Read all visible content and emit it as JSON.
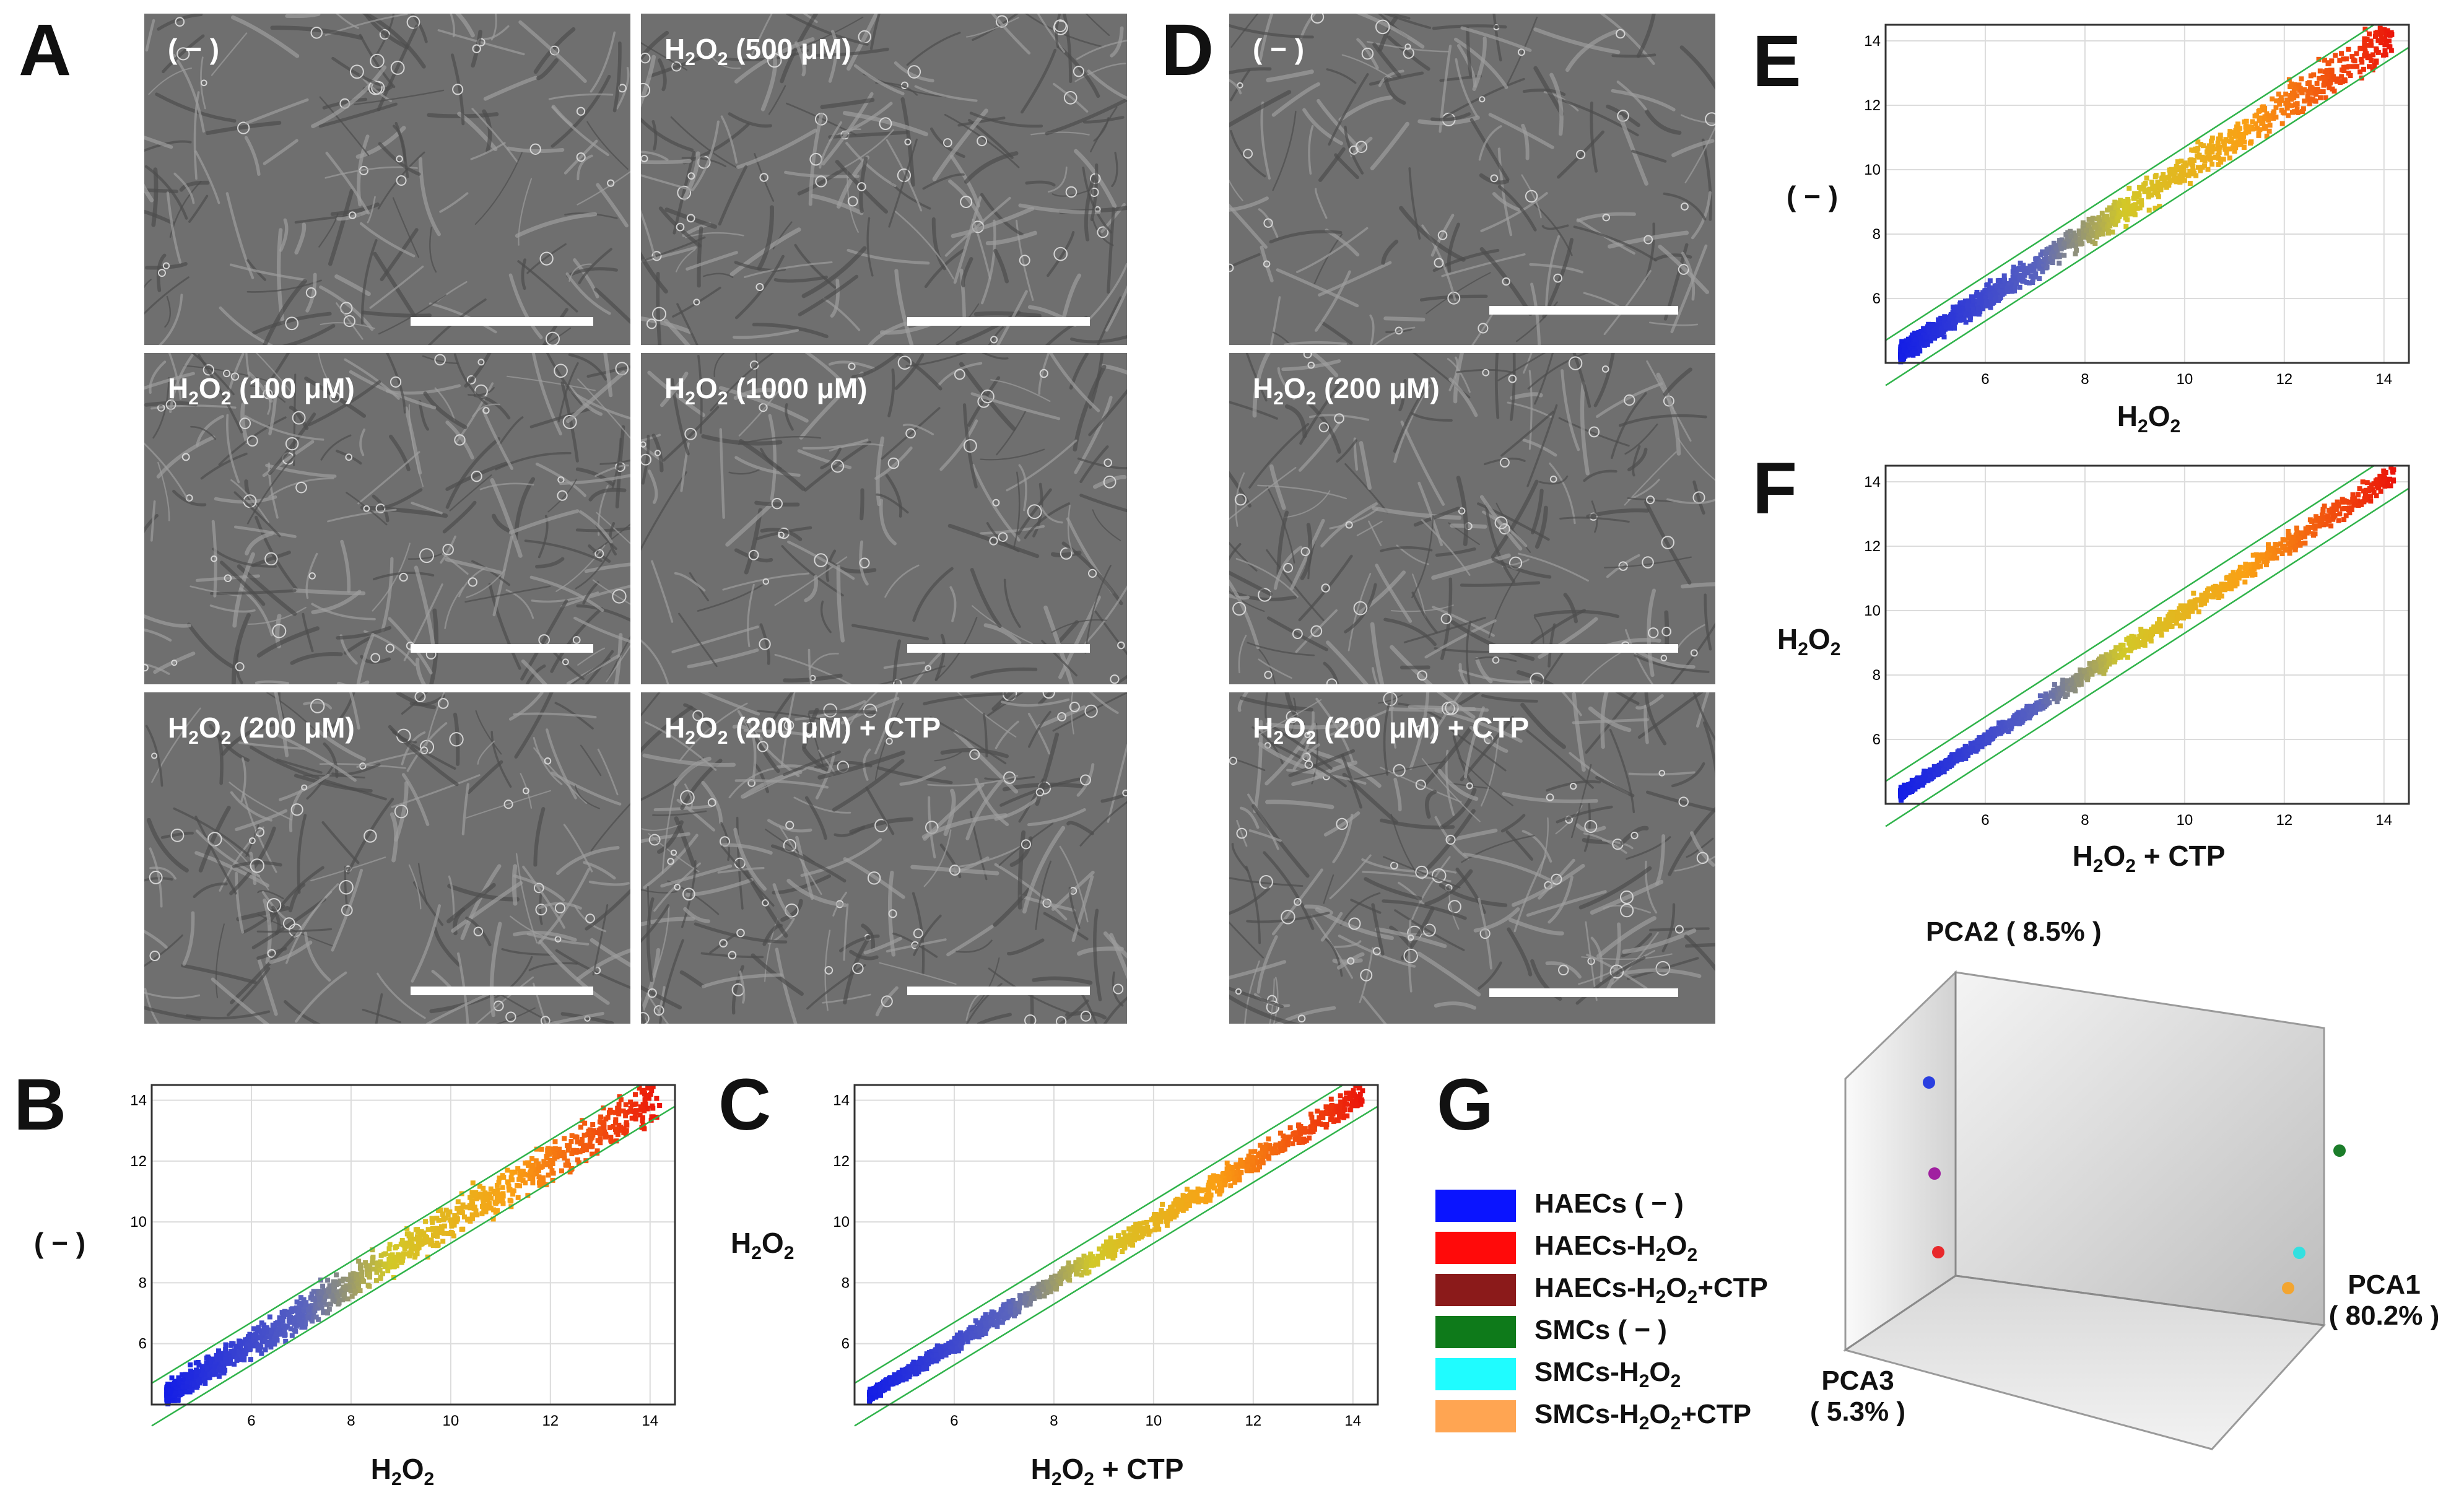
{
  "panel_letters": {
    "A": "A",
    "B": "B",
    "C": "C",
    "D": "D",
    "E": "E",
    "F": "F",
    "G": "G"
  },
  "panel_A": {
    "images": [
      {
        "label": "( − )",
        "h2o2": false
      },
      {
        "prefix": "H",
        "sub": "2",
        "mid": "O",
        "sub2": "2",
        "suffix": " (500 μM)"
      },
      {
        "prefix": "H",
        "sub": "2",
        "mid": "O",
        "sub2": "2",
        "suffix": " (100 μM)"
      },
      {
        "prefix": "H",
        "sub": "2",
        "mid": "O",
        "sub2": "2",
        "suffix": " (1000 μM)"
      },
      {
        "prefix": "H",
        "sub": "2",
        "mid": "O",
        "sub2": "2",
        "suffix": " (200 μM)"
      },
      {
        "prefix": "H",
        "sub": "2",
        "mid": "O",
        "sub2": "2",
        "suffix": " (200 μM) + CTP"
      }
    ]
  },
  "panel_D": {
    "images": [
      {
        "label": "( − )"
      },
      {
        "prefix": "H",
        "sub": "2",
        "mid": "O",
        "sub2": "2",
        "suffix": " (200 μM)"
      },
      {
        "prefix": "H",
        "sub": "2",
        "mid": "O",
        "sub2": "2",
        "suffix": " (200 μM) + CTP"
      }
    ]
  },
  "axis_text": {
    "neg": "( − )",
    "h": "H",
    "two": "2",
    "o": "O",
    "ctp_suffix": " + CTP"
  },
  "chart_data": [
    {
      "panel": "B",
      "type": "scatter",
      "xlabel": "H2O2",
      "ylabel": "( − )",
      "xticks": [
        6,
        8,
        10,
        12,
        14
      ],
      "yticks": [
        6,
        8,
        10,
        12,
        14
      ],
      "xlim": [
        4,
        14.5
      ],
      "ylim": [
        4,
        14.5
      ],
      "spread": 0.55,
      "identity_bands": {
        "offset": 0.7
      },
      "grid": true
    },
    {
      "panel": "C",
      "type": "scatter",
      "xlabel": "H2O2 + CTP",
      "ylabel": "H2O2",
      "xticks": [
        6,
        8,
        10,
        12,
        14
      ],
      "yticks": [
        6,
        8,
        10,
        12,
        14
      ],
      "xlim": [
        4,
        14.5
      ],
      "ylim": [
        4,
        14.5
      ],
      "spread": 0.3,
      "identity_bands": {
        "offset": 0.7
      },
      "grid": true
    },
    {
      "panel": "E",
      "type": "scatter",
      "xlabel": "H2O2",
      "ylabel": "( − )",
      "xticks": [
        6,
        8,
        10,
        12,
        14
      ],
      "yticks": [
        6,
        8,
        10,
        12,
        14
      ],
      "xlim": [
        4,
        14.5
      ],
      "ylim": [
        4,
        14.5
      ],
      "spread": 0.45,
      "identity_bands": {
        "offset": 0.7
      },
      "grid": true
    },
    {
      "panel": "F",
      "type": "scatter",
      "xlabel": "H2O2 + CTP",
      "ylabel": "H2O2",
      "xticks": [
        6,
        8,
        10,
        12,
        14
      ],
      "yticks": [
        6,
        8,
        10,
        12,
        14
      ],
      "xlim": [
        4,
        14.5
      ],
      "ylim": [
        4,
        14.5
      ],
      "spread": 0.25,
      "identity_bands": {
        "offset": 0.7
      },
      "grid": true
    },
    {
      "panel": "G",
      "type": "scatter3d",
      "axes": {
        "pca1": "PCA1",
        "pca1_pct": "( 80.2% )",
        "pca2": "PCA2 ( 8.5% )",
        "pca3": "PCA3",
        "pca3_pct": "( 5.3% )"
      },
      "points": [
        {
          "name": "HAECs ( − )",
          "color": "#2a3fe0"
        },
        {
          "name": "HAECs-H2O2",
          "color": "#e8282b"
        },
        {
          "name": "HAECs-H2O2+CTP",
          "color": "#a020a0"
        },
        {
          "name": "SMCs ( − )",
          "color": "#1b7d2a"
        },
        {
          "name": "SMCs-H2O2",
          "color": "#33e0e0"
        },
        {
          "name": "SMCs-H2O2+CTP",
          "color": "#f3a530"
        }
      ]
    }
  ],
  "legend": [
    {
      "base": "HAECs",
      "tail": " ( − )",
      "color": "#0a14ff"
    },
    {
      "base": "HAECs-H",
      "sub": "2",
      "mid": "O",
      "sub2": "2",
      "tail": "",
      "color": "#ff0a0a"
    },
    {
      "base": "HAECs-H",
      "sub": "2",
      "mid": "O",
      "sub2": "2",
      "tail": "+CTP",
      "color": "#8b1a1a"
    },
    {
      "base": "SMCs",
      "tail": " ( − )",
      "color": "#0e7a1a"
    },
    {
      "base": "SMCs-H",
      "sub": "2",
      "mid": "O",
      "sub2": "2",
      "tail": "",
      "color": "#1ffcff"
    },
    {
      "base": "SMCs-H",
      "sub": "2",
      "mid": "O",
      "sub2": "2",
      "tail": "+CTP",
      "color": "#ffa552"
    }
  ]
}
